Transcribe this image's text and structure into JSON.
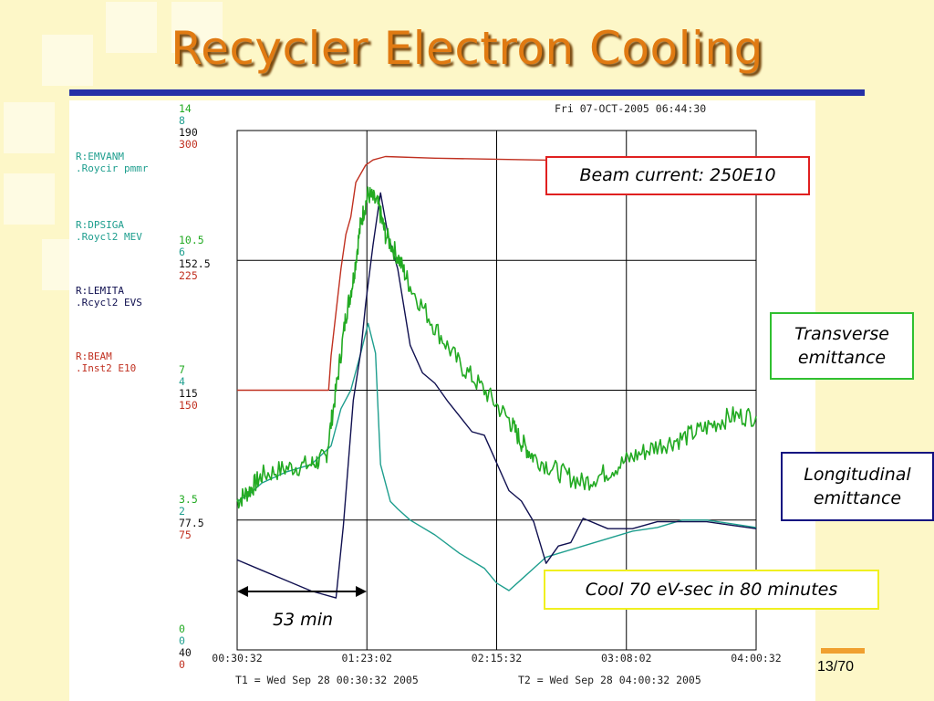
{
  "slide": {
    "title": "Recycler Electron Cooling",
    "page_number": "13/70"
  },
  "plot_header": {
    "timestamp": "Fri 07-OCT-2005 06:44:30",
    "time_range_left": "T1 = Wed Sep 28 00:30:32 2005",
    "time_range_right": "T2 = Wed Sep 28 04:00:32 2005"
  },
  "channels": [
    {
      "name": "R:EMVANM",
      "desc": ".Roycir pmmr",
      "color": "#1e9e8e"
    },
    {
      "name": "R:DPSIGA",
      "desc": ".Roycl2 MEV",
      "color": "#1e9e8e"
    },
    {
      "name": "R:LEMITA",
      "desc": ".Rcycl2 EVS",
      "color": "#101050"
    },
    {
      "name": "R:BEAM",
      "desc": ".Inst2  E10",
      "color": "#c03020"
    }
  ],
  "axis_scales": [
    {
      "values": [
        "14",
        "8",
        "190",
        "300"
      ]
    },
    {
      "values": [
        "10.5",
        "6",
        "152.5",
        "225"
      ]
    },
    {
      "values": [
        "7",
        "4",
        "115",
        "150"
      ]
    },
    {
      "values": [
        "3.5",
        "2",
        "77.5",
        "75"
      ]
    },
    {
      "values": [
        "0",
        "0",
        "40",
        "0"
      ]
    }
  ],
  "scale_colors": [
    "#22aa22",
    "#1e9e8e",
    "#101010",
    "#c03020"
  ],
  "x_ticks": [
    "00:30:32",
    "01:23:02",
    "02:15:32",
    "03:08:02",
    "04:00:32"
  ],
  "annotations": {
    "beam_current": "Beam current: 250E10",
    "transverse_line1": "Transverse",
    "transverse_line2": "emittance",
    "longitudinal_line1": "Longitudinal",
    "longitudinal_line2": "emittance",
    "cool": "Cool 70 eV-sec in 80 minutes",
    "duration": "53 min"
  },
  "chart_data": {
    "type": "line",
    "x_unit": "minutes since 00:30:32",
    "xlim": [
      0,
      210
    ],
    "x_tick_minutes": [
      0,
      52.5,
      105,
      157.5,
      210
    ],
    "grid": true,
    "series": [
      {
        "name": "R:BEAM",
        "color": "#c03020",
        "axis_range": [
          0,
          300
        ],
        "x": [
          0,
          37,
          38,
          40,
          42,
          44,
          46,
          48,
          50,
          52,
          55,
          60,
          80,
          120,
          160,
          210
        ],
        "y": [
          150,
          150,
          170,
          195,
          220,
          240,
          250,
          270,
          275,
          280,
          283,
          285,
          284,
          283,
          282,
          280
        ]
      },
      {
        "name": "R:DPSIGA",
        "color": "#22aa22",
        "axis_range": [
          0,
          14
        ],
        "x": [
          0,
          5,
          10,
          20,
          30,
          36,
          40,
          44,
          47,
          50,
          53,
          57,
          60,
          65,
          70,
          80,
          90,
          100,
          110,
          115,
          120,
          130,
          140,
          150,
          160,
          170,
          180,
          190,
          200,
          210
        ],
        "y": [
          4.0,
          4.3,
          4.7,
          4.9,
          5.0,
          5.2,
          7.0,
          9.0,
          10.0,
          11.5,
          12.3,
          12.0,
          11.2,
          10.6,
          9.8,
          8.7,
          7.7,
          7.0,
          6.2,
          5.6,
          5.2,
          4.8,
          4.5,
          4.8,
          5.2,
          5.5,
          5.7,
          6.0,
          6.3,
          6.3
        ]
      },
      {
        "name": "R:EMVANM",
        "color": "#1e9e8e",
        "axis_range": [
          0,
          14
        ],
        "x": [
          0,
          5,
          10,
          20,
          30,
          38,
          42,
          46,
          50,
          53,
          56,
          58,
          62,
          65,
          70,
          80,
          90,
          100,
          105,
          110,
          115,
          120,
          125,
          130,
          140,
          150,
          160,
          170,
          180,
          190,
          200,
          210
        ],
        "y": [
          4.0,
          4.2,
          4.5,
          4.8,
          5.0,
          5.5,
          6.5,
          7.0,
          8.0,
          8.8,
          8.0,
          5.0,
          4.0,
          3.8,
          3.5,
          3.1,
          2.6,
          2.2,
          1.8,
          1.6,
          1.9,
          2.2,
          2.5,
          2.6,
          2.8,
          3.0,
          3.2,
          3.3,
          3.5,
          3.5,
          3.4,
          3.3
        ]
      },
      {
        "name": "R:LEMITA",
        "color": "#101050",
        "axis_range": [
          40,
          190
        ],
        "x": [
          0,
          10,
          20,
          30,
          40,
          43,
          47,
          50,
          52,
          55,
          58,
          61,
          65,
          70,
          75,
          80,
          85,
          95,
          100,
          105,
          110,
          115,
          120,
          125,
          130,
          135,
          140,
          150,
          160,
          170,
          180,
          190,
          200,
          210
        ],
        "y": [
          66,
          63,
          60,
          57,
          55,
          76,
          112,
          126,
          140,
          157,
          172,
          160,
          150,
          128,
          120,
          117,
          112,
          103,
          102,
          94,
          86,
          83,
          77,
          65,
          70,
          71,
          78,
          75,
          75,
          77,
          77,
          77,
          76,
          75
        ]
      }
    ]
  }
}
